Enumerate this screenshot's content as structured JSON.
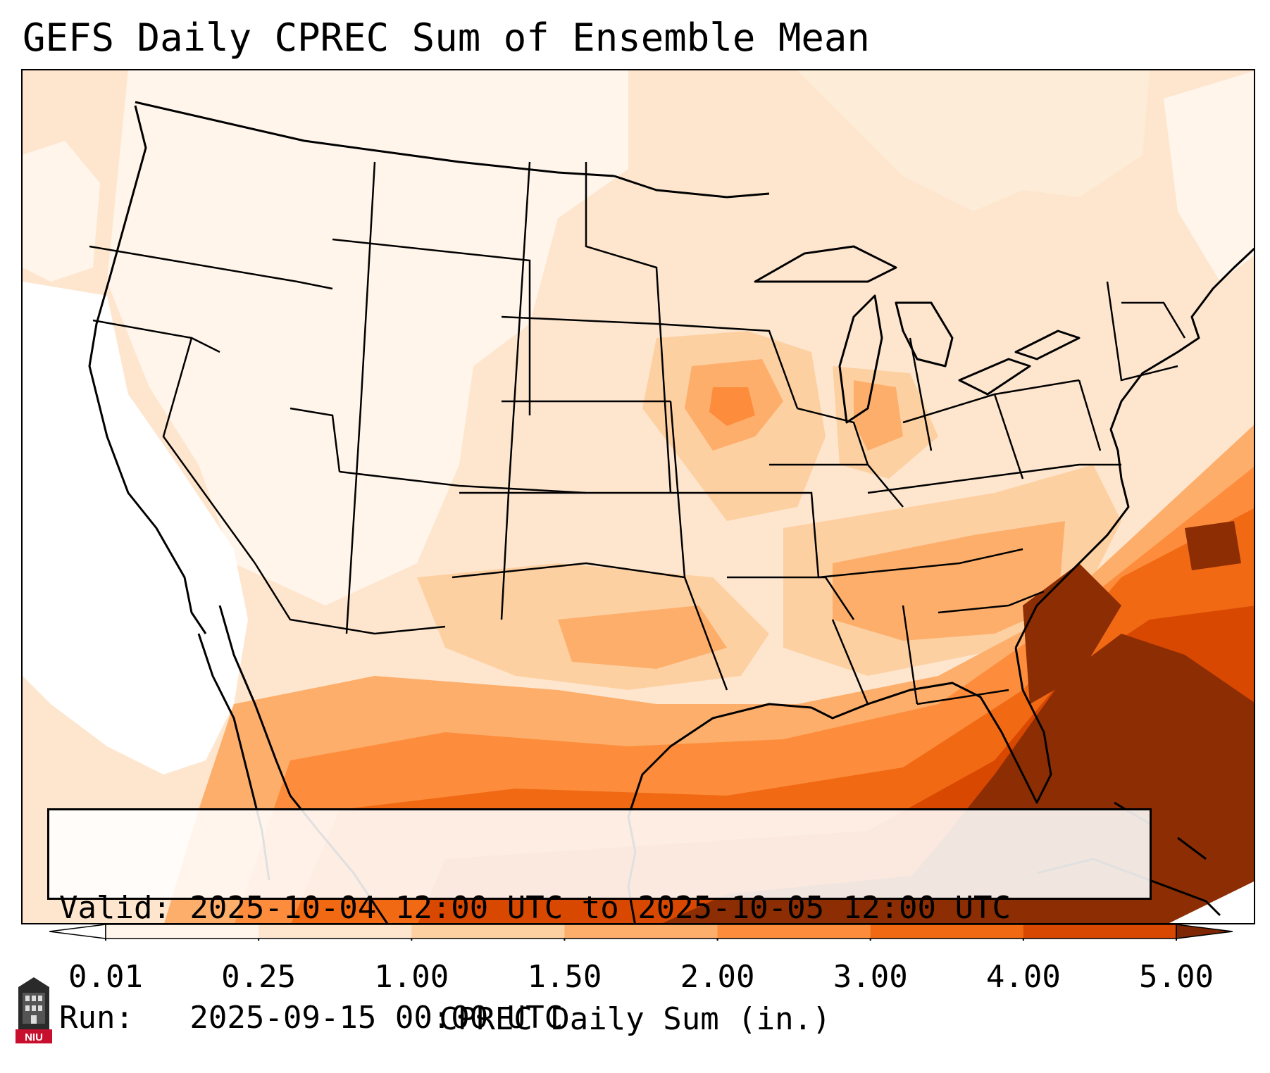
{
  "title": "GEFS Daily CPREC Sum of Ensemble Mean",
  "info": {
    "valid": "Valid: 2025-10-04 12:00 UTC to 2025-10-05 12:00 UTC",
    "run": "Run:   2025-09-15 00:00 UTC"
  },
  "colorbar": {
    "label": "CPREC Daily Sum (in.)",
    "ticks": [
      "0.01",
      "0.25",
      "1.00",
      "1.50",
      "2.00",
      "3.00",
      "4.00",
      "5.00"
    ],
    "colors": [
      "#fff5eb",
      "#fee6ce",
      "#fdd0a2",
      "#fdae6b",
      "#fd8d3c",
      "#f16913",
      "#d94801",
      "#8c2d04"
    ],
    "under_color": "#ffffff",
    "over_color": "#7f2704"
  },
  "map": {
    "projection": "Lambert Conformal (CONUS)",
    "field": "Ensemble mean daily convective precipitation sum",
    "max_region": "Southeast US coast, Florida, western Atlantic, Gulf of Mexico"
  },
  "logo": {
    "text": "NIU",
    "icon": "niu-building-logo-icon"
  }
}
